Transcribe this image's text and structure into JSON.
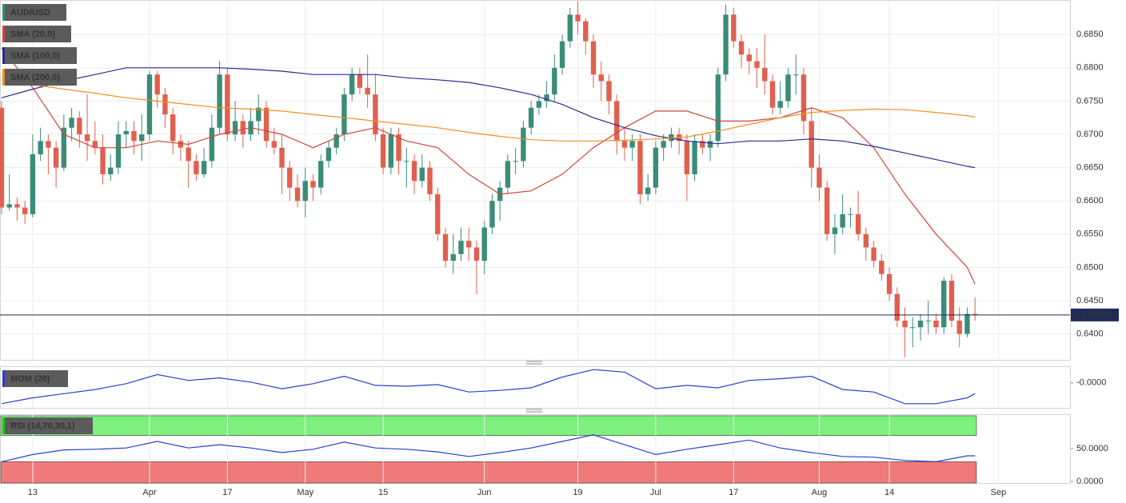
{
  "chart_data": [
    {
      "type": "candlestick",
      "title": "AUD/USD",
      "up_color": "#3b8c78",
      "down_color": "#e0604f",
      "xlim": [
        -0.2,
        137.2
      ],
      "ylim": [
        0.6361,
        0.6902
      ],
      "yticks": [
        {
          "value": 0.685,
          "label": "0.6850"
        },
        {
          "value": 0.68,
          "label": "0.6800"
        },
        {
          "value": 0.675,
          "label": "0.6750"
        },
        {
          "value": 0.67,
          "label": "0.6700"
        },
        {
          "value": 0.665,
          "label": "0.6650"
        },
        {
          "value": 0.66,
          "label": "0.6600"
        },
        {
          "value": 0.655,
          "label": "0.6550"
        },
        {
          "value": 0.65,
          "label": "0.6500"
        },
        {
          "value": 0.645,
          "label": "0.6450"
        },
        {
          "value": 0.64,
          "label": "0.6400"
        }
      ],
      "xticks": [
        {
          "value": 4,
          "label": "13"
        },
        {
          "value": 19,
          "label": "Apr"
        },
        {
          "value": 29,
          "label": "17"
        },
        {
          "value": 39,
          "label": "May"
        },
        {
          "value": 49,
          "label": "15"
        },
        {
          "value": 62,
          "label": "Jun"
        },
        {
          "value": 74,
          "label": "19"
        },
        {
          "value": 84,
          "label": "Jul"
        },
        {
          "value": 94,
          "label": "17"
        },
        {
          "value": 105,
          "label": "Aug"
        },
        {
          "value": 114,
          "label": "14"
        },
        {
          "value": 128,
          "label": "Sep"
        }
      ],
      "grid": true,
      "last_price": {
        "value": 0.64285,
        "label": "0.642850"
      },
      "ohlc": [
        [
          0.674,
          0.675,
          0.658,
          0.659
        ],
        [
          0.659,
          0.664,
          0.6585,
          0.6595
        ],
        [
          0.6595,
          0.6605,
          0.657,
          0.659
        ],
        [
          0.659,
          0.66,
          0.6565,
          0.658
        ],
        [
          0.658,
          0.67,
          0.6575,
          0.667
        ],
        [
          0.667,
          0.671,
          0.666,
          0.669
        ],
        [
          0.669,
          0.67,
          0.664,
          0.668
        ],
        [
          0.668,
          0.669,
          0.662,
          0.665
        ],
        [
          0.665,
          0.673,
          0.6645,
          0.671
        ],
        [
          0.671,
          0.674,
          0.669,
          0.6725
        ],
        [
          0.6725,
          0.6735,
          0.668,
          0.67
        ],
        [
          0.67,
          0.676,
          0.666,
          0.669
        ],
        [
          0.669,
          0.672,
          0.667,
          0.668
        ],
        [
          0.668,
          0.67,
          0.6625,
          0.664
        ],
        [
          0.664,
          0.667,
          0.663,
          0.665
        ],
        [
          0.665,
          0.672,
          0.664,
          0.67
        ],
        [
          0.67,
          0.672,
          0.668,
          0.6705
        ],
        [
          0.6705,
          0.672,
          0.667,
          0.669
        ],
        [
          0.669,
          0.673,
          0.666,
          0.67
        ],
        [
          0.67,
          0.6795,
          0.669,
          0.679
        ],
        [
          0.679,
          0.6795,
          0.674,
          0.676
        ],
        [
          0.676,
          0.677,
          0.671,
          0.673
        ],
        [
          0.673,
          0.674,
          0.667,
          0.669
        ],
        [
          0.669,
          0.67,
          0.666,
          0.668
        ],
        [
          0.668,
          0.669,
          0.662,
          0.666
        ],
        [
          0.666,
          0.667,
          0.663,
          0.664
        ],
        [
          0.664,
          0.668,
          0.6635,
          0.666
        ],
        [
          0.666,
          0.673,
          0.665,
          0.671
        ],
        [
          0.671,
          0.681,
          0.67,
          0.679
        ],
        [
          0.679,
          0.68,
          0.669,
          0.67
        ],
        [
          0.67,
          0.675,
          0.669,
          0.672
        ],
        [
          0.672,
          0.673,
          0.668,
          0.67
        ],
        [
          0.67,
          0.674,
          0.669,
          0.672
        ],
        [
          0.672,
          0.676,
          0.67,
          0.674
        ],
        [
          0.674,
          0.675,
          0.668,
          0.669
        ],
        [
          0.669,
          0.671,
          0.667,
          0.668
        ],
        [
          0.668,
          0.67,
          0.661,
          0.665
        ],
        [
          0.665,
          0.666,
          0.66,
          0.662
        ],
        [
          0.662,
          0.664,
          0.659,
          0.66
        ],
        [
          0.66,
          0.665,
          0.6575,
          0.663
        ],
        [
          0.663,
          0.664,
          0.66,
          0.662
        ],
        [
          0.662,
          0.667,
          0.661,
          0.666
        ],
        [
          0.666,
          0.669,
          0.665,
          0.668
        ],
        [
          0.668,
          0.671,
          0.667,
          0.67
        ],
        [
          0.67,
          0.677,
          0.669,
          0.676
        ],
        [
          0.676,
          0.68,
          0.675,
          0.679
        ],
        [
          0.679,
          0.68,
          0.676,
          0.677
        ],
        [
          0.677,
          0.682,
          0.674,
          0.676
        ],
        [
          0.676,
          0.679,
          0.669,
          0.67
        ],
        [
          0.67,
          0.671,
          0.664,
          0.665
        ],
        [
          0.665,
          0.671,
          0.664,
          0.67
        ],
        [
          0.67,
          0.671,
          0.664,
          0.666
        ],
        [
          0.666,
          0.668,
          0.662,
          0.666
        ],
        [
          0.666,
          0.667,
          0.661,
          0.663
        ],
        [
          0.663,
          0.667,
          0.662,
          0.665
        ],
        [
          0.665,
          0.666,
          0.66,
          0.661
        ],
        [
          0.661,
          0.662,
          0.654,
          0.655
        ],
        [
          0.655,
          0.656,
          0.65,
          0.651
        ],
        [
          0.651,
          0.655,
          0.649,
          0.652
        ],
        [
          0.652,
          0.656,
          0.651,
          0.654
        ],
        [
          0.654,
          0.656,
          0.651,
          0.653
        ],
        [
          0.653,
          0.654,
          0.646,
          0.651
        ],
        [
          0.651,
          0.657,
          0.649,
          0.656
        ],
        [
          0.656,
          0.661,
          0.655,
          0.66
        ],
        [
          0.66,
          0.663,
          0.657,
          0.662
        ],
        [
          0.662,
          0.667,
          0.661,
          0.666
        ],
        [
          0.666,
          0.668,
          0.664,
          0.666
        ],
        [
          0.666,
          0.672,
          0.665,
          0.671
        ],
        [
          0.671,
          0.675,
          0.67,
          0.674
        ],
        [
          0.674,
          0.676,
          0.673,
          0.675
        ],
        [
          0.675,
          0.678,
          0.674,
          0.676
        ],
        [
          0.676,
          0.682,
          0.675,
          0.68
        ],
        [
          0.68,
          0.685,
          0.679,
          0.684
        ],
        [
          0.684,
          0.689,
          0.683,
          0.688
        ],
        [
          0.688,
          0.69,
          0.685,
          0.687
        ],
        [
          0.687,
          0.6875,
          0.682,
          0.684
        ],
        [
          0.684,
          0.685,
          0.677,
          0.679
        ],
        [
          0.679,
          0.681,
          0.675,
          0.678
        ],
        [
          0.678,
          0.679,
          0.673,
          0.675
        ],
        [
          0.675,
          0.676,
          0.667,
          0.669
        ],
        [
          0.669,
          0.671,
          0.666,
          0.668
        ],
        [
          0.668,
          0.67,
          0.666,
          0.669
        ],
        [
          0.669,
          0.67,
          0.6595,
          0.661
        ],
        [
          0.661,
          0.664,
          0.66,
          0.662
        ],
        [
          0.662,
          0.669,
          0.661,
          0.668
        ],
        [
          0.668,
          0.67,
          0.666,
          0.669
        ],
        [
          0.669,
          0.671,
          0.668,
          0.67
        ],
        [
          0.67,
          0.671,
          0.667,
          0.669
        ],
        [
          0.669,
          0.67,
          0.66,
          0.664
        ],
        [
          0.664,
          0.67,
          0.663,
          0.669
        ],
        [
          0.669,
          0.67,
          0.667,
          0.668
        ],
        [
          0.668,
          0.67,
          0.666,
          0.669
        ],
        [
          0.669,
          0.68,
          0.668,
          0.679
        ],
        [
          0.679,
          0.6895,
          0.678,
          0.688
        ],
        [
          0.688,
          0.689,
          0.683,
          0.684
        ],
        [
          0.684,
          0.685,
          0.68,
          0.682
        ],
        [
          0.682,
          0.683,
          0.679,
          0.681
        ],
        [
          0.681,
          0.683,
          0.677,
          0.68
        ],
        [
          0.68,
          0.685,
          0.676,
          0.678
        ],
        [
          0.678,
          0.679,
          0.673,
          0.674
        ],
        [
          0.674,
          0.678,
          0.673,
          0.675
        ],
        [
          0.675,
          0.68,
          0.674,
          0.679
        ],
        [
          0.679,
          0.682,
          0.676,
          0.679
        ],
        [
          0.679,
          0.68,
          0.67,
          0.672
        ],
        [
          0.672,
          0.674,
          0.662,
          0.665
        ],
        [
          0.665,
          0.667,
          0.66,
          0.662
        ],
        [
          0.662,
          0.663,
          0.654,
          0.655
        ],
        [
          0.655,
          0.658,
          0.652,
          0.656
        ],
        [
          0.656,
          0.661,
          0.655,
          0.658
        ],
        [
          0.658,
          0.659,
          0.656,
          0.658
        ],
        [
          0.658,
          0.6615,
          0.654,
          0.655
        ],
        [
          0.655,
          0.656,
          0.651,
          0.653
        ],
        [
          0.653,
          0.654,
          0.65,
          0.651
        ],
        [
          0.651,
          0.652,
          0.648,
          0.649
        ],
        [
          0.649,
          0.65,
          0.645,
          0.646
        ],
        [
          0.646,
          0.647,
          0.641,
          0.642
        ],
        [
          0.642,
          0.644,
          0.6365,
          0.641
        ],
        [
          0.641,
          0.6425,
          0.638,
          0.641
        ],
        [
          0.641,
          0.643,
          0.639,
          0.642
        ],
        [
          0.642,
          0.645,
          0.64,
          0.642
        ],
        [
          0.642,
          0.643,
          0.64,
          0.641
        ],
        [
          0.641,
          0.6485,
          0.64,
          0.648
        ],
        [
          0.648,
          0.649,
          0.641,
          0.642
        ],
        [
          0.642,
          0.644,
          0.638,
          0.64
        ],
        [
          0.64,
          0.644,
          0.6395,
          0.643
        ],
        [
          0.643,
          0.6455,
          0.642,
          0.64285
        ]
      ],
      "x": [
        0,
        4,
        8,
        12,
        16,
        20,
        24,
        28,
        32,
        36,
        40,
        44,
        48,
        52,
        56,
        60,
        64,
        68,
        72,
        76,
        80,
        84,
        88,
        92,
        96,
        100,
        104,
        108,
        112,
        116,
        120,
        124,
        125
      ],
      "series": [
        {
          "name": "SMA (20,0)",
          "color": "#d0453a",
          "values": [
            0.683,
            0.677,
            0.67,
            0.668,
            0.668,
            0.669,
            0.6685,
            0.67,
            0.671,
            0.67,
            0.668,
            0.67,
            0.671,
            0.669,
            0.668,
            0.664,
            0.661,
            0.6615,
            0.664,
            0.668,
            0.671,
            0.6735,
            0.6735,
            0.672,
            0.672,
            0.6725,
            0.674,
            0.6725,
            0.668,
            0.661,
            0.655,
            0.65,
            0.6475
          ]
        },
        {
          "name": "SMA (100,0)",
          "color": "#2b2a92",
          "values": [
            0.6755,
            0.6768,
            0.678,
            0.679,
            0.68,
            0.68,
            0.68,
            0.68,
            0.6798,
            0.6795,
            0.679,
            0.679,
            0.679,
            0.6785,
            0.6782,
            0.6778,
            0.677,
            0.676,
            0.6745,
            0.6725,
            0.671,
            0.6698,
            0.669,
            0.6686,
            0.669,
            0.669,
            0.6693,
            0.669,
            0.6682,
            0.6672,
            0.6662,
            0.6652,
            0.665
          ]
        },
        {
          "name": "SMA (200,0)",
          "color": "#f0901e",
          "values": [
            0.6785,
            0.6775,
            0.6768,
            0.6762,
            0.6755,
            0.675,
            0.6745,
            0.674,
            0.6738,
            0.6735,
            0.673,
            0.6725,
            0.672,
            0.6715,
            0.671,
            0.6703,
            0.6697,
            0.6692,
            0.669,
            0.669,
            0.6691,
            0.6693,
            0.6696,
            0.6705,
            0.6715,
            0.6725,
            0.6733,
            0.6736,
            0.6738,
            0.6737,
            0.6733,
            0.6728,
            0.6726
          ]
        }
      ]
    },
    {
      "type": "line",
      "title": "MOM (20)",
      "color": "#2a3fd0",
      "xlim": [
        -0.2,
        137.2
      ],
      "ylim": [
        -0.03,
        0.02
      ],
      "yticks": [
        {
          "value": 0,
          "label": "-0.0000"
        }
      ],
      "x": [
        0,
        4,
        8,
        12,
        16,
        20,
        24,
        28,
        32,
        36,
        40,
        44,
        48,
        52,
        56,
        60,
        64,
        68,
        72,
        76,
        80,
        84,
        88,
        92,
        96,
        100,
        104,
        108,
        112,
        116,
        120,
        124,
        125
      ],
      "values": [
        -0.025,
        -0.018,
        -0.013,
        -0.008,
        -0.001,
        0.01,
        0.003,
        0.006,
        0.001,
        -0.007,
        -0.001,
        0.008,
        -0.003,
        -0.004,
        -0.002,
        -0.011,
        -0.009,
        -0.006,
        0.007,
        0.016,
        0.013,
        -0.007,
        -0.003,
        -0.006,
        0.003,
        0.005,
        0.008,
        -0.008,
        -0.011,
        -0.025,
        -0.025,
        -0.018,
        -0.013
      ]
    },
    {
      "type": "line",
      "title": "RSI (14,70,30,1)",
      "color": "#2a3fd0",
      "xlim": [
        -0.2,
        137.2
      ],
      "ylim": [
        -2.4,
        102.4
      ],
      "yticks": [
        {
          "value": 50,
          "label": "50.0000"
        },
        {
          "value": 0,
          "label": "0.0000"
        }
      ],
      "upper_band": 70,
      "lower_band": 30,
      "band_top": 100,
      "upper_color": "#7ef07e",
      "lower_color": "#f07a7a",
      "x": [
        0,
        4,
        8,
        12,
        16,
        20,
        24,
        28,
        32,
        36,
        40,
        44,
        48,
        52,
        56,
        60,
        64,
        68,
        72,
        76,
        80,
        84,
        88,
        92,
        96,
        100,
        104,
        108,
        112,
        116,
        120,
        124,
        125
      ],
      "values": [
        30,
        41,
        48,
        49,
        51,
        61,
        51,
        56,
        51,
        44,
        49,
        60,
        51,
        49,
        45,
        38,
        44,
        51,
        61,
        71,
        56,
        41,
        49,
        56,
        63,
        51,
        44,
        38,
        37,
        32,
        30,
        39,
        39
      ]
    }
  ]
}
